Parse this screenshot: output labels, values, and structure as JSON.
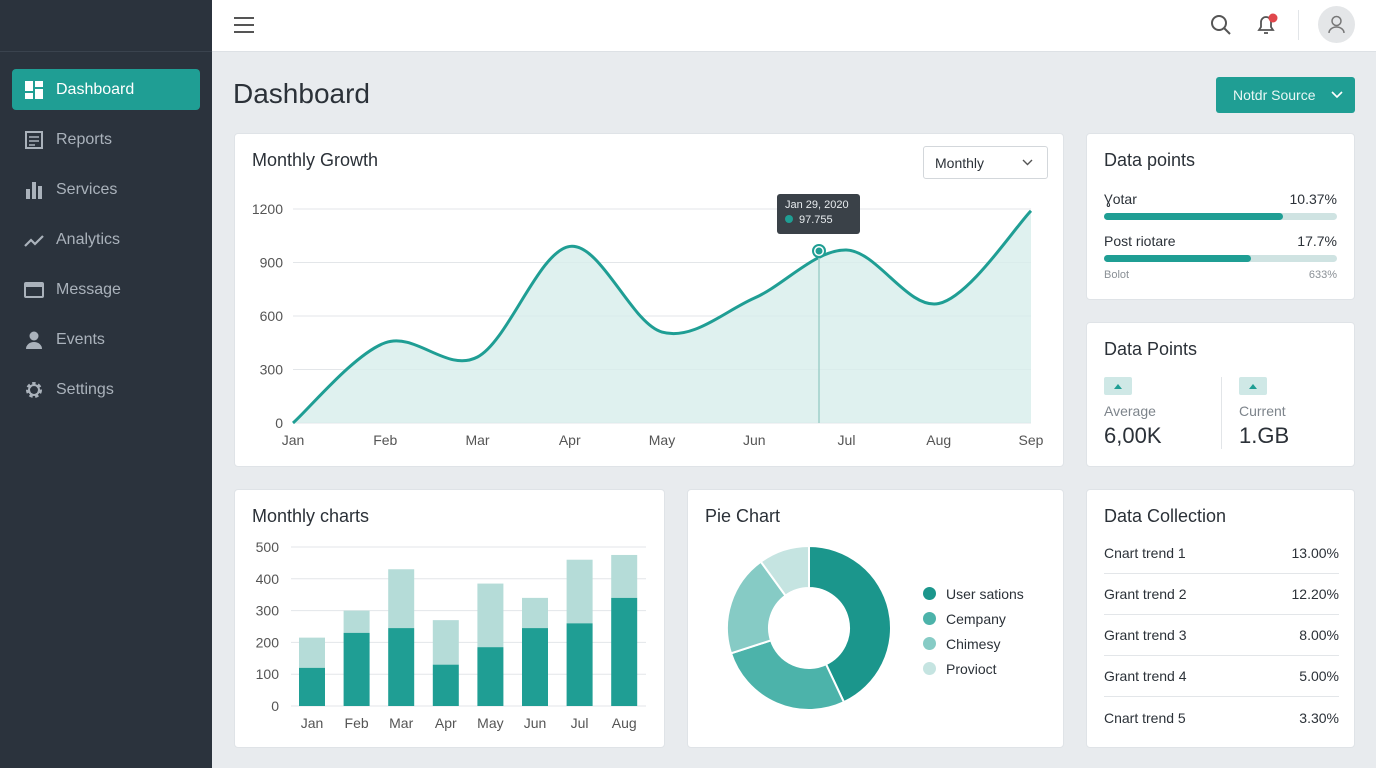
{
  "sidebar": {
    "items": [
      {
        "label": "Dashboard",
        "icon": "dashboard-icon",
        "active": true
      },
      {
        "label": "Reports",
        "icon": "reports-icon"
      },
      {
        "label": "Services",
        "icon": "bar-chart-icon"
      },
      {
        "label": "Analytics",
        "icon": "trend-icon"
      },
      {
        "label": "Message",
        "icon": "message-icon"
      },
      {
        "label": "Events",
        "icon": "person-icon"
      },
      {
        "label": "Settings",
        "icon": "gear-icon"
      }
    ]
  },
  "header": {
    "title": "Dashboard",
    "source_button": "Notdr Source"
  },
  "colors": {
    "accent": "#1f9e94",
    "sidebar": "#2b333d"
  },
  "growth": {
    "title": "Monthly Growth",
    "period": "Monthly",
    "tooltip": {
      "date": "Jan 29, 2020",
      "value": "97.755"
    }
  },
  "data_points": {
    "title": "Data points",
    "rows": [
      {
        "label": "Ɣotar",
        "value": "10.37%",
        "fill": 0.77
      },
      {
        "label": "Post riotare",
        "value": "17.7%",
        "fill": 0.63
      }
    ],
    "foot_label": "Bolot",
    "foot_value": "633%"
  },
  "data_points2": {
    "title": "Data Points",
    "avg_label": "Average",
    "avg_value": "6,00K",
    "cur_label": "Current",
    "cur_value": "1.GB"
  },
  "collection": {
    "title": "Data Collection",
    "rows": [
      {
        "label": "Cnart trend 1",
        "value": "13.00%"
      },
      {
        "label": "Grant trend 2",
        "value": "12.20%"
      },
      {
        "label": "Grant trend 3",
        "value": "8.00%"
      },
      {
        "label": "Grant trend 4",
        "value": "5.00%"
      },
      {
        "label": "Cnart trend 5",
        "value": "3.30%"
      }
    ]
  },
  "chart_data": [
    {
      "type": "area",
      "title": "Monthly Growth",
      "categories": [
        "Jan",
        "Feb",
        "Mar",
        "Apr",
        "May",
        "Jun",
        "Jul",
        "Aug",
        "Sep"
      ],
      "values": [
        0,
        450,
        370,
        990,
        510,
        700,
        970,
        670,
        1190
      ],
      "yticks": [
        0,
        300,
        600,
        900,
        1200
      ],
      "ylim": [
        0,
        1200
      ],
      "grid": true
    },
    {
      "type": "bar",
      "stacked": true,
      "title": "Monthly charts",
      "categories": [
        "Jan",
        "Feb",
        "Mar",
        "Apr",
        "May",
        "Jun",
        "Jul",
        "Aug"
      ],
      "series": [
        {
          "values": [
            120,
            230,
            245,
            130,
            185,
            245,
            260,
            340
          ]
        },
        {
          "values": [
            95,
            70,
            185,
            140,
            200,
            95,
            200,
            135
          ]
        }
      ],
      "yticks": [
        0,
        100,
        200,
        300,
        400,
        500
      ],
      "ylim": [
        0,
        500
      ],
      "grid": true
    },
    {
      "type": "pie",
      "donut": true,
      "title": "Pie Chart",
      "labels": [
        "User sations",
        "Cempany",
        "Chimesy",
        "Provioct"
      ],
      "values": [
        43,
        27,
        20,
        10
      ],
      "colors": [
        "#1b968c",
        "#4cb3aa",
        "#86cbc5",
        "#c5e4e1"
      ],
      "legend": "right"
    }
  ]
}
